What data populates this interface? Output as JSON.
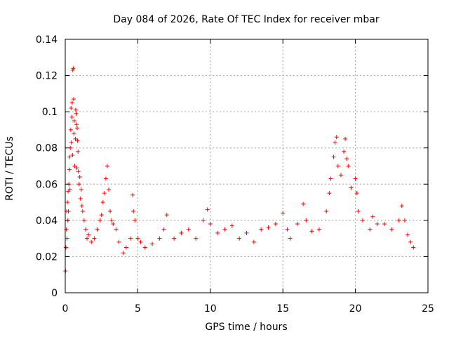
{
  "chart_data": {
    "type": "scatter",
    "title": "Day 084 of 2026, Rate Of TEC Index for receiver mbar",
    "xlabel": "GPS time / hours",
    "ylabel": "ROTI / TECUs",
    "xlim": [
      0,
      25
    ],
    "ylim": [
      0,
      0.14
    ],
    "xticks": [
      0,
      5,
      10,
      15,
      20,
      25
    ],
    "yticks": [
      0,
      0.02,
      0.04,
      0.06,
      0.08,
      0.1,
      0.12,
      0.14
    ],
    "xtick_labels": [
      "0",
      "5",
      "10",
      "15",
      "20",
      "25"
    ],
    "ytick_labels": [
      "0",
      "0.02",
      "0.04",
      "0.06",
      "0.08",
      "0.1",
      "0.12",
      "0.14"
    ],
    "grid": true,
    "marker": "+",
    "marker_color": "#ff0000",
    "series": [
      {
        "points": [
          [
            0.02,
            0.012
          ],
          [
            0.05,
            0.025
          ],
          [
            0.08,
            0.035
          ],
          [
            0.1,
            0.045
          ],
          [
            0.12,
            0.03
          ],
          [
            0.15,
            0.05
          ],
          [
            0.18,
            0.04
          ],
          [
            0.2,
            0.056
          ],
          [
            0.22,
            0.045
          ],
          [
            0.25,
            0.06
          ],
          [
            0.28,
            0.068
          ],
          [
            0.3,
            0.075
          ],
          [
            0.32,
            0.057
          ],
          [
            0.35,
            0.08
          ],
          [
            0.38,
            0.09
          ],
          [
            0.4,
            0.102
          ],
          [
            0.42,
            0.083
          ],
          [
            0.45,
            0.097
          ],
          [
            0.48,
            0.105
          ],
          [
            0.5,
            0.076
          ],
          [
            0.52,
            0.123
          ],
          [
            0.55,
            0.124
          ],
          [
            0.58,
            0.107
          ],
          [
            0.6,
            0.088
          ],
          [
            0.62,
            0.095
          ],
          [
            0.65,
            0.07
          ],
          [
            0.7,
            0.085
          ],
          [
            0.72,
            0.101
          ],
          [
            0.75,
            0.099
          ],
          [
            0.78,
            0.093
          ],
          [
            0.8,
            0.069
          ],
          [
            0.82,
            0.091
          ],
          [
            0.85,
            0.084
          ],
          [
            0.88,
            0.078
          ],
          [
            0.9,
            0.067
          ],
          [
            0.95,
            0.06
          ],
          [
            1.0,
            0.064
          ],
          [
            1.05,
            0.052
          ],
          [
            1.1,
            0.057
          ],
          [
            1.15,
            0.048
          ],
          [
            1.2,
            0.045
          ],
          [
            1.3,
            0.04
          ],
          [
            1.4,
            0.035
          ],
          [
            1.5,
            0.03
          ],
          [
            1.6,
            0.032
          ],
          [
            1.8,
            0.028
          ],
          [
            2.0,
            0.03
          ],
          [
            2.2,
            0.035
          ],
          [
            2.4,
            0.04
          ],
          [
            2.5,
            0.043
          ],
          [
            2.6,
            0.05
          ],
          [
            2.7,
            0.055
          ],
          [
            2.8,
            0.063
          ],
          [
            2.9,
            0.07
          ],
          [
            3.0,
            0.057
          ],
          [
            3.1,
            0.045
          ],
          [
            3.2,
            0.04
          ],
          [
            3.3,
            0.038
          ],
          [
            3.5,
            0.035
          ],
          [
            3.7,
            0.028
          ],
          [
            4.0,
            0.022
          ],
          [
            4.2,
            0.025
          ],
          [
            4.5,
            0.03
          ],
          [
            4.65,
            0.054
          ],
          [
            4.7,
            0.045
          ],
          [
            4.8,
            0.04
          ],
          [
            5.0,
            0.03
          ],
          [
            5.2,
            0.028
          ],
          [
            5.5,
            0.025
          ],
          [
            6.0,
            0.027
          ],
          [
            6.5,
            0.03
          ],
          [
            6.8,
            0.035
          ],
          [
            7.0,
            0.043
          ],
          [
            7.5,
            0.03
          ],
          [
            8.0,
            0.033
          ],
          [
            8.5,
            0.035
          ],
          [
            9.0,
            0.03
          ],
          [
            9.5,
            0.04
          ],
          [
            9.8,
            0.046
          ],
          [
            10.0,
            0.038
          ],
          [
            10.5,
            0.033
          ],
          [
            11.0,
            0.035
          ],
          [
            11.5,
            0.037
          ],
          [
            12.0,
            0.03
          ],
          [
            12.5,
            0.033
          ],
          [
            13.0,
            0.028
          ],
          [
            13.5,
            0.035
          ],
          [
            14.0,
            0.036
          ],
          [
            14.5,
            0.038
          ],
          [
            15.0,
            0.044
          ],
          [
            15.3,
            0.035
          ],
          [
            15.5,
            0.03
          ],
          [
            16.0,
            0.038
          ],
          [
            16.4,
            0.049
          ],
          [
            16.6,
            0.04
          ],
          [
            17.0,
            0.034
          ],
          [
            17.5,
            0.035
          ],
          [
            18.0,
            0.045
          ],
          [
            18.2,
            0.055
          ],
          [
            18.3,
            0.063
          ],
          [
            18.5,
            0.075
          ],
          [
            18.6,
            0.083
          ],
          [
            18.7,
            0.086
          ],
          [
            18.8,
            0.07
          ],
          [
            19.0,
            0.065
          ],
          [
            19.2,
            0.078
          ],
          [
            19.3,
            0.085
          ],
          [
            19.4,
            0.074
          ],
          [
            19.5,
            0.07
          ],
          [
            19.7,
            0.058
          ],
          [
            20.0,
            0.063
          ],
          [
            20.1,
            0.055
          ],
          [
            20.2,
            0.045
          ],
          [
            20.5,
            0.04
          ],
          [
            21.0,
            0.035
          ],
          [
            21.2,
            0.042
          ],
          [
            21.5,
            0.038
          ],
          [
            22.0,
            0.038
          ],
          [
            22.5,
            0.035
          ],
          [
            23.0,
            0.04
          ],
          [
            23.2,
            0.048
          ],
          [
            23.4,
            0.04
          ],
          [
            23.6,
            0.032
          ],
          [
            23.8,
            0.028
          ],
          [
            24.0,
            0.025
          ]
        ]
      }
    ]
  }
}
